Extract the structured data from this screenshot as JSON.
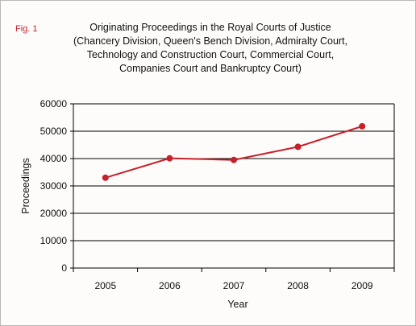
{
  "figure_label": "Fig. 1",
  "title_lines": [
    "Originating Proceedings in the Royal Courts of Justice",
    "(Chancery Division, Queen's Bench Division, Admiralty Court,",
    "Technology and Construction Court, Commercial Court,",
    "Companies Court and Bankruptcy Court)"
  ],
  "colors": {
    "series": "#c8202a",
    "figure_label": "#c8202a",
    "grid": "#000000"
  },
  "chart_data": {
    "type": "line",
    "title": "Originating Proceedings in the Royal Courts of Justice (Chancery Division, Queen's Bench Division, Admiralty Court, Technology and Construction Court, Commercial Court, Companies Court and Bankruptcy Court)",
    "categories": [
      "2005",
      "2006",
      "2007",
      "2008",
      "2009"
    ],
    "series": [
      {
        "values": [
          33000,
          40100,
          39500,
          44300,
          51800
        ]
      }
    ],
    "xlabel": "Year",
    "ylabel": "Proceedings",
    "ylim": [
      0,
      60000
    ],
    "yticks": [
      "0",
      "10000",
      "20000",
      "30000",
      "40000",
      "50000",
      "60000"
    ],
    "grid": true,
    "legend": "none"
  }
}
